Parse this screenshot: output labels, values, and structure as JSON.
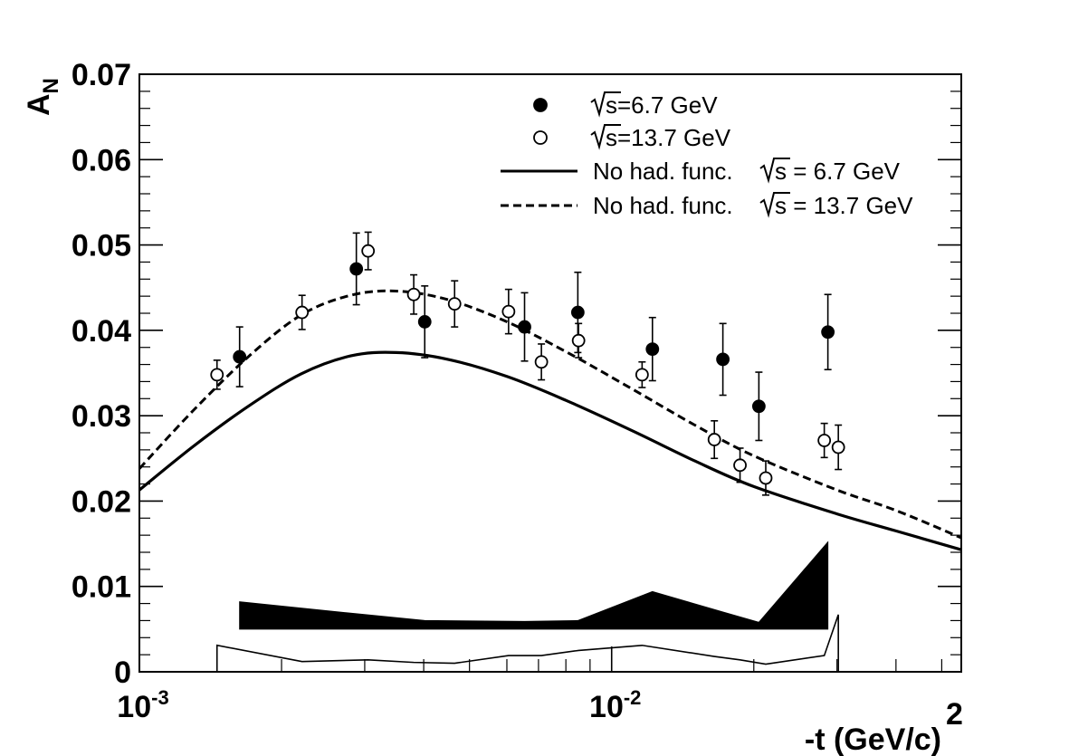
{
  "chart_data": {
    "type": "scatter",
    "title": "",
    "xlabel": "-t (GeV/c)",
    "xlabel_power": "2",
    "ylabel": "A",
    "ylabel_sub": "N",
    "xscale": "log",
    "xlim": [
      0.001,
      0.055
    ],
    "ylim": [
      0,
      0.07
    ],
    "grid": false,
    "legend_position": "top-right",
    "y_ticks": [
      {
        "value": 0,
        "label": "0"
      },
      {
        "value": 0.01,
        "label": "0.01"
      },
      {
        "value": 0.02,
        "label": "0.02"
      },
      {
        "value": 0.03,
        "label": "0.03"
      },
      {
        "value": 0.04,
        "label": "0.04"
      },
      {
        "value": 0.05,
        "label": "0.05"
      },
      {
        "value": 0.06,
        "label": "0.06"
      },
      {
        "value": 0.07,
        "label": "0.07"
      }
    ],
    "x_ticks": [
      {
        "value": 0.001,
        "base": "10",
        "exp": "-3"
      },
      {
        "value": 0.01,
        "base": "10",
        "exp": "-2"
      }
    ],
    "legend": [
      {
        "marker": "filled-circle",
        "sqrt": "s",
        "text": "=6.7 GeV"
      },
      {
        "marker": "open-circle",
        "sqrt": "s",
        "text": "=13.7 GeV"
      },
      {
        "marker": "solid-line",
        "prefix": "No had. func.",
        "sqrt": "s",
        "text": " = 6.7 GeV"
      },
      {
        "marker": "dashed-line",
        "prefix": "No had. func.",
        "sqrt": "s",
        "text": " = 13.7 GeV"
      }
    ],
    "series": [
      {
        "name": "√s=6.7 GeV",
        "style": "filled-circle",
        "points": [
          {
            "x": 0.00163,
            "y": 0.0369,
            "err": 0.0035
          },
          {
            "x": 0.00288,
            "y": 0.0472,
            "err": 0.0042
          },
          {
            "x": 0.00402,
            "y": 0.041,
            "err": 0.0042
          },
          {
            "x": 0.00654,
            "y": 0.0404,
            "err": 0.004
          },
          {
            "x": 0.00848,
            "y": 0.0421,
            "err": 0.0047
          },
          {
            "x": 0.0122,
            "y": 0.0378,
            "err": 0.0037
          },
          {
            "x": 0.0172,
            "y": 0.0366,
            "err": 0.0042
          },
          {
            "x": 0.0205,
            "y": 0.0311,
            "err": 0.004
          },
          {
            "x": 0.0287,
            "y": 0.0398,
            "err": 0.0044
          }
        ]
      },
      {
        "name": "√s=13.7 GeV",
        "style": "open-circle",
        "points": [
          {
            "x": 0.00146,
            "y": 0.0348,
            "err": 0.0017
          },
          {
            "x": 0.00221,
            "y": 0.0421,
            "err": 0.002
          },
          {
            "x": 0.00305,
            "y": 0.0493,
            "err": 0.0022
          },
          {
            "x": 0.00381,
            "y": 0.0442,
            "err": 0.0023
          },
          {
            "x": 0.00465,
            "y": 0.0431,
            "err": 0.0027
          },
          {
            "x": 0.00605,
            "y": 0.0422,
            "err": 0.0026
          },
          {
            "x": 0.0071,
            "y": 0.0363,
            "err": 0.0021
          },
          {
            "x": 0.00851,
            "y": 0.0388,
            "err": 0.002
          },
          {
            "x": 0.0116,
            "y": 0.0348,
            "err": 0.0015
          },
          {
            "x": 0.0165,
            "y": 0.0272,
            "err": 0.0022
          },
          {
            "x": 0.0187,
            "y": 0.0242,
            "err": 0.002
          },
          {
            "x": 0.0212,
            "y": 0.0227,
            "err": 0.002
          },
          {
            "x": 0.0282,
            "y": 0.0271,
            "err": 0.002
          },
          {
            "x": 0.0302,
            "y": 0.0263,
            "err": 0.0026
          }
        ]
      },
      {
        "name": "No had. func. √s = 6.7 GeV",
        "style": "solid-line",
        "x": [
          0.001,
          0.0013,
          0.0017,
          0.0022,
          0.0028,
          0.0035,
          0.0045,
          0.006,
          0.008,
          0.011,
          0.015,
          0.02,
          0.03,
          0.04,
          0.055
        ],
        "y": [
          0.0213,
          0.0264,
          0.0311,
          0.0349,
          0.037,
          0.0374,
          0.0366,
          0.0346,
          0.0318,
          0.0283,
          0.0247,
          0.0217,
          0.0185,
          0.0165,
          0.0143
        ]
      },
      {
        "name": "No had. func. √s = 13.7 GeV",
        "style": "dashed-line",
        "x": [
          0.001,
          0.0013,
          0.0017,
          0.0022,
          0.0028,
          0.0035,
          0.0045,
          0.006,
          0.008,
          0.011,
          0.015,
          0.02,
          0.03,
          0.04,
          0.055
        ],
        "y": [
          0.0238,
          0.0306,
          0.0369,
          0.0418,
          0.0441,
          0.0446,
          0.0436,
          0.041,
          0.0375,
          0.0332,
          0.0289,
          0.0253,
          0.0213,
          0.0189,
          0.0157
        ]
      }
    ],
    "systematic_bands": [
      {
        "name": "systematic 6.7 GeV",
        "style": "filled",
        "base": 0.005,
        "x": [
          0.00163,
          0.00288,
          0.00402,
          0.00654,
          0.00848,
          0.0122,
          0.0172,
          0.0205,
          0.0287
        ],
        "y": [
          0.0082,
          0.0068,
          0.006,
          0.0059,
          0.006,
          0.0094,
          0.007,
          0.0058,
          0.0152
        ]
      },
      {
        "name": "systematic 13.7 GeV",
        "style": "outline",
        "base": 0,
        "x": [
          0.00146,
          0.00221,
          0.00305,
          0.00381,
          0.00465,
          0.00605,
          0.0071,
          0.00851,
          0.0116,
          0.0165,
          0.0187,
          0.0212,
          0.0282,
          0.0302
        ],
        "y": [
          0.0031,
          0.0012,
          0.0014,
          0.0011,
          0.001,
          0.0019,
          0.0019,
          0.0025,
          0.0031,
          0.0018,
          0.0014,
          0.0009,
          0.0019,
          0.0067
        ]
      }
    ]
  }
}
